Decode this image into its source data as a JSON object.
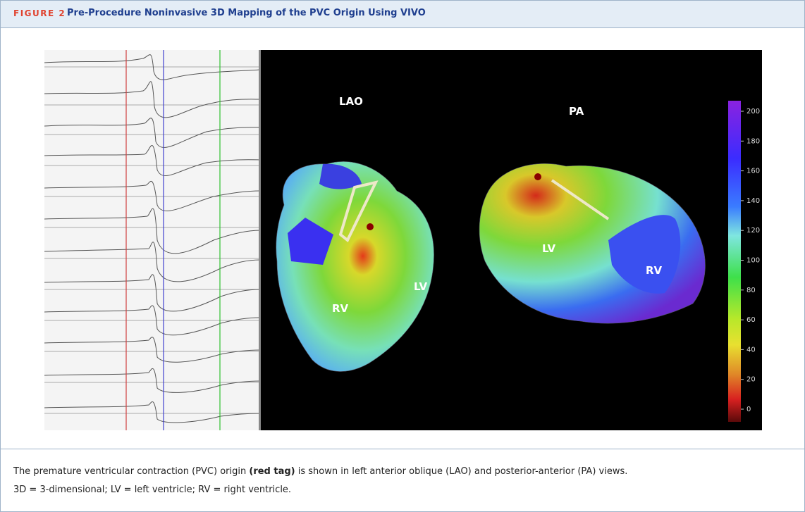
{
  "header": {
    "figure_label": "FIGURE 2",
    "title": "Pre-Procedure Noninvasive 3D Mapping of the PVC Origin Using VIVO"
  },
  "image": {
    "view_labels": [
      "LAO",
      "PA"
    ],
    "region_labels": [
      "LV",
      "RV",
      "LV",
      "RV"
    ],
    "colorbar": {
      "range": [
        0,
        200
      ],
      "ticks": [
        0,
        20,
        40,
        60,
        80,
        100,
        120,
        140,
        160,
        180,
        200
      ]
    }
  },
  "caption": {
    "part1": "The premature ventricular contraction (PVC) origin",
    "emphasis": "(red tag)",
    "part2": "is shown in left anterior oblique (LAO) and posterior-anterior (PA) views.",
    "abbreviations": "3D = 3-dimensional; LV = left ventricle; RV = right ventricle."
  }
}
